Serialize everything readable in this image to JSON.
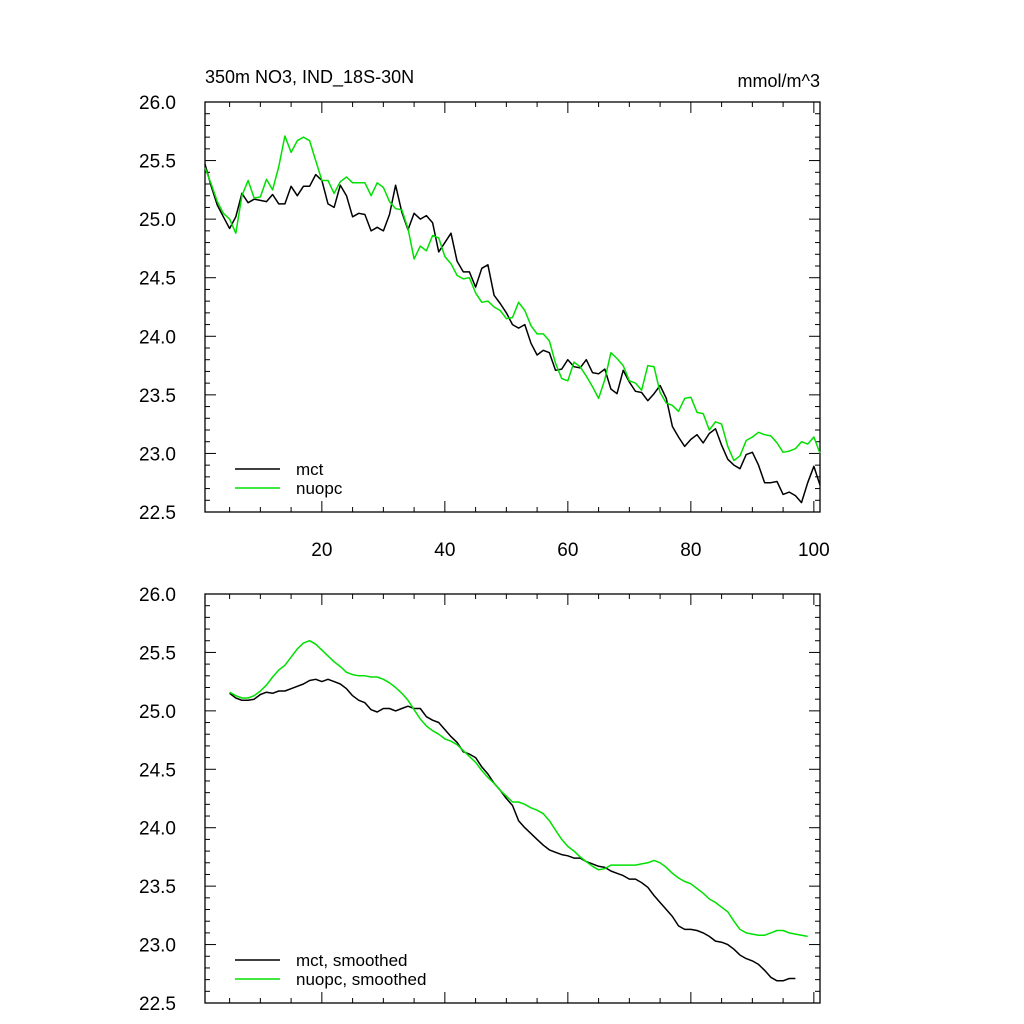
{
  "chart_data": [
    {
      "type": "line",
      "title": "350m NO3, IND_18S-30N",
      "units": "mmol/m^3",
      "xlabel": "",
      "ylabel": "",
      "xlim": [
        1,
        101
      ],
      "ylim": [
        22.5,
        26.0
      ],
      "xticks": [
        20,
        40,
        60,
        80,
        100
      ],
      "yticks": [
        22.5,
        23.0,
        23.5,
        24.0,
        24.5,
        25.0,
        25.5,
        26.0
      ],
      "ytick_labels": [
        "22.5",
        "23.0",
        "23.5",
        "24.0",
        "24.5",
        "25.0",
        "25.5",
        "26.0"
      ],
      "show_x_tick_labels": true,
      "legend_position": "bottom-left",
      "series": [
        {
          "name": "mct",
          "color": "#000000",
          "x_start": 1,
          "values": [
            25.47,
            25.28,
            25.12,
            25.02,
            24.92,
            25.02,
            25.22,
            25.14,
            25.17,
            25.16,
            25.15,
            25.21,
            25.13,
            25.13,
            25.28,
            25.2,
            25.28,
            25.28,
            25.38,
            25.33,
            25.13,
            25.1,
            25.29,
            25.2,
            25.02,
            25.05,
            25.04,
            24.9,
            24.93,
            24.9,
            25.04,
            25.29,
            25.06,
            24.91,
            25.05,
            25.0,
            25.03,
            24.97,
            24.72,
            24.8,
            24.88,
            24.64,
            24.55,
            24.55,
            24.42,
            24.58,
            24.61,
            24.35,
            24.28,
            24.2,
            24.1,
            24.07,
            24.1,
            23.94,
            23.84,
            23.88,
            23.86,
            23.71,
            23.72,
            23.8,
            23.74,
            23.73,
            23.8,
            23.69,
            23.68,
            23.72,
            23.55,
            23.51,
            23.71,
            23.61,
            23.53,
            23.52,
            23.45,
            23.51,
            23.58,
            23.47,
            23.23,
            23.14,
            23.06,
            23.12,
            23.16,
            23.09,
            23.17,
            23.21,
            23.07,
            22.95,
            22.9,
            22.87,
            22.99,
            23.01,
            22.9,
            22.75,
            22.75,
            22.76,
            22.65,
            22.67,
            22.64,
            22.58,
            22.75,
            22.89,
            22.73
          ]
        },
        {
          "name": "nuopc",
          "color": "#00e000",
          "x_start": 1,
          "values": [
            25.44,
            25.3,
            25.15,
            25.05,
            25.0,
            24.88,
            25.2,
            25.33,
            25.18,
            25.19,
            25.34,
            25.25,
            25.45,
            25.71,
            25.57,
            25.67,
            25.7,
            25.67,
            25.5,
            25.33,
            25.33,
            25.22,
            25.32,
            25.36,
            25.31,
            25.31,
            25.31,
            25.2,
            25.31,
            25.27,
            25.15,
            25.09,
            25.08,
            24.92,
            24.66,
            24.77,
            24.73,
            24.86,
            24.84,
            24.68,
            24.62,
            24.52,
            24.49,
            24.5,
            24.37,
            24.29,
            24.3,
            24.25,
            24.22,
            24.15,
            24.16,
            24.29,
            24.22,
            24.09,
            24.02,
            24.02,
            23.96,
            23.77,
            23.64,
            23.62,
            23.78,
            23.74,
            23.66,
            23.57,
            23.47,
            23.63,
            23.86,
            23.81,
            23.75,
            23.62,
            23.6,
            23.54,
            23.75,
            23.74,
            23.52,
            23.43,
            23.41,
            23.36,
            23.47,
            23.48,
            23.35,
            23.34,
            23.2,
            23.27,
            23.25,
            23.06,
            22.94,
            22.98,
            23.11,
            23.14,
            23.18,
            23.16,
            23.15,
            23.09,
            23.01,
            23.02,
            23.04,
            23.1,
            23.08,
            23.14,
            23.0
          ]
        }
      ]
    },
    {
      "type": "line",
      "title": "",
      "xlabel": "",
      "ylabel": "",
      "xlim": [
        1,
        101
      ],
      "ylim": [
        22.5,
        26.0
      ],
      "xticks": [
        20,
        40,
        60,
        80,
        100
      ],
      "yticks": [
        22.5,
        23.0,
        23.5,
        24.0,
        24.5,
        25.0,
        25.5,
        26.0
      ],
      "ytick_labels": [
        "22.5",
        "23.0",
        "23.5",
        "24.0",
        "24.5",
        "25.0",
        "25.5",
        "26.0"
      ],
      "show_x_tick_labels": false,
      "legend_position": "bottom-left",
      "series": [
        {
          "name": "mct, smoothed",
          "color": "#000000",
          "x_start": 5,
          "values": [
            25.15,
            25.11,
            25.09,
            25.09,
            25.1,
            25.14,
            25.16,
            25.15,
            25.17,
            25.17,
            25.19,
            25.21,
            25.23,
            25.26,
            25.27,
            25.25,
            25.27,
            25.25,
            25.23,
            25.19,
            25.13,
            25.09,
            25.07,
            25.01,
            24.99,
            25.02,
            25.02,
            25.0,
            25.02,
            25.04,
            25.02,
            25.02,
            24.95,
            24.92,
            24.9,
            24.84,
            24.78,
            24.73,
            24.65,
            24.63,
            24.6,
            24.52,
            24.46,
            24.38,
            24.32,
            24.25,
            24.19,
            24.06,
            24.0,
            23.95,
            23.9,
            23.85,
            23.81,
            23.79,
            23.77,
            23.76,
            23.74,
            23.74,
            23.71,
            23.69,
            23.67,
            23.66,
            23.63,
            23.61,
            23.59,
            23.56,
            23.56,
            23.53,
            23.49,
            23.42,
            23.36,
            23.3,
            23.24,
            23.16,
            23.13,
            23.13,
            23.12,
            23.1,
            23.07,
            23.03,
            23.02,
            23.0,
            22.96,
            22.91,
            22.88,
            22.86,
            22.83,
            22.78,
            22.72,
            22.69,
            22.69,
            22.71,
            22.71
          ]
        },
        {
          "name": "nuopc, smoothed",
          "color": "#00e000",
          "x_start": 5,
          "values": [
            25.16,
            25.13,
            25.11,
            25.11,
            25.13,
            25.17,
            25.22,
            25.29,
            25.35,
            25.39,
            25.46,
            25.53,
            25.58,
            25.6,
            25.57,
            25.52,
            25.47,
            25.42,
            25.38,
            25.33,
            25.31,
            25.3,
            25.3,
            25.29,
            25.29,
            25.27,
            25.24,
            25.2,
            25.15,
            25.09,
            25.01,
            24.93,
            24.87,
            24.83,
            24.8,
            24.76,
            24.74,
            24.71,
            24.66,
            24.61,
            24.56,
            24.49,
            24.43,
            24.38,
            24.32,
            24.27,
            24.22,
            24.22,
            24.2,
            24.17,
            24.15,
            24.12,
            24.06,
            23.98,
            23.9,
            23.84,
            23.8,
            23.75,
            23.71,
            23.67,
            23.64,
            23.65,
            23.68,
            23.68,
            23.68,
            23.68,
            23.68,
            23.69,
            23.7,
            23.72,
            23.7,
            23.66,
            23.61,
            23.57,
            23.54,
            23.52,
            23.48,
            23.44,
            23.39,
            23.36,
            23.32,
            23.28,
            23.2,
            23.13,
            23.1,
            23.09,
            23.08,
            23.08,
            23.1,
            23.12,
            23.12,
            23.1,
            23.09,
            23.08,
            23.07
          ]
        }
      ]
    }
  ]
}
